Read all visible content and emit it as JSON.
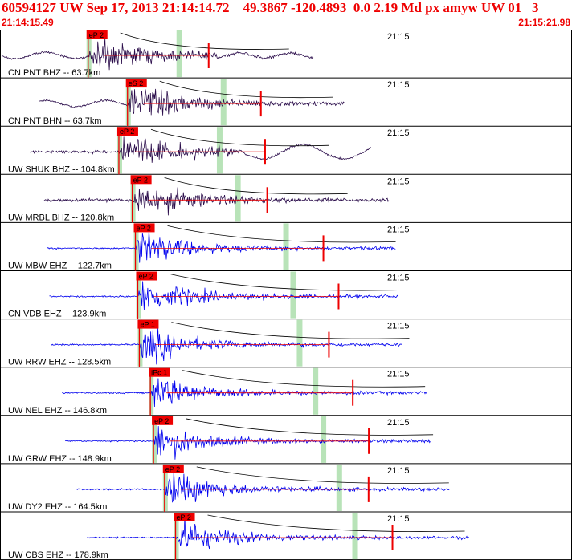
{
  "header": {
    "title": "60594127 UW Sep 17, 2013 21:14:14.72    49.3867 -120.4893  0.0 2.19 Md px amyw UW 01   3",
    "start_time": "21:14:15.49",
    "end_time": "21:15:21.98"
  },
  "colors": {
    "header_text": "#ee0000",
    "trace_dark": "#2a0c4a",
    "trace_blue": "#0000ee",
    "pick_box": "#ee0000",
    "window_band": "#b8e3b8",
    "coda_curve": "#000000",
    "border": "#000000"
  },
  "traces": [
    {
      "label": "CN PNT BHZ -- 63.7km",
      "pick": "eP 2",
      "time_mark": "21:15",
      "color": "dark",
      "pick_s": 6.3,
      "end_s": 31.5
    },
    {
      "label": "CN PNT BHN -- 63.7km",
      "pick": "eS 2",
      "time_mark": "21:15",
      "color": "dark",
      "pick_s": 11.3,
      "end_s": 31.5
    },
    {
      "label": "UW SHUK BHZ -- 104.8km",
      "pick": "eP 2",
      "time_mark": "21:15",
      "color": "dark",
      "pick_s": 10.2,
      "end_s": 36.0
    },
    {
      "label": "UW MRBL BHZ -- 120.8km",
      "pick": "eP 2",
      "time_mark": "21:15",
      "color": "dark",
      "pick_s": 11.9,
      "end_s": 36.9
    },
    {
      "label": "UW MBW EHZ -- 122.7km",
      "pick": "eP 2",
      "time_mark": "21:15",
      "color": "blue",
      "pick_s": 12.3,
      "end_s": 37.5
    },
    {
      "label": "CN VDB EHZ -- 123.9km",
      "pick": "eP 2",
      "time_mark": "21:15",
      "color": "blue",
      "pick_s": 12.6,
      "end_s": 37.5
    },
    {
      "label": "UW RRW EHZ -- 128.5km",
      "pick": "eP 1",
      "time_mark": "21:15",
      "color": "blue",
      "pick_s": 12.8,
      "end_s": 38.0
    },
    {
      "label": "UW NEL EHZ -- 146.8km",
      "pick": "iPc 1",
      "time_mark": "21:15",
      "color": "blue",
      "pick_s": 14.2,
      "end_s": 40.0
    },
    {
      "label": "UW GRW EHZ -- 148.9km",
      "pick": "eP 2",
      "time_mark": "21:15",
      "color": "blue",
      "pick_s": 14.6,
      "end_s": 40.2
    },
    {
      "label": "UW DY2 EHZ -- 164.5km",
      "pick": "eP 2",
      "time_mark": "21:15",
      "color": "blue",
      "pick_s": 16.0,
      "end_s": 41.6
    },
    {
      "label": "UW CBS EHZ -- 178.9km",
      "pick": "eP 2",
      "time_mark": "21:15",
      "color": "blue",
      "pick_s": 17.4,
      "end_s": 43.0
    }
  ]
}
